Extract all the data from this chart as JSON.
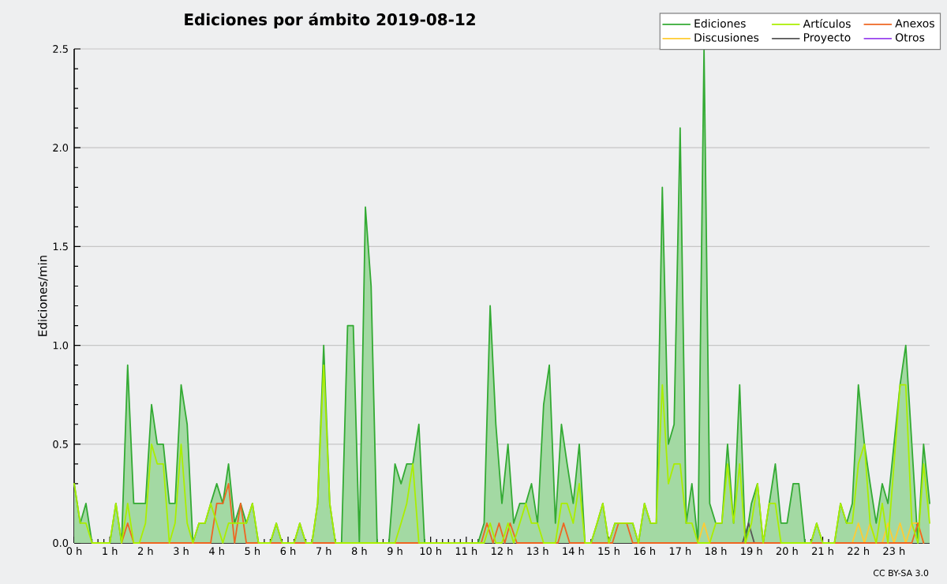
{
  "chart_data": {
    "type": "line",
    "title": "Ediciones por ámbito  2019-08-12",
    "ylabel": "Ediciones/min",
    "annotations": [
      "CC BY-SA 3.0"
    ],
    "xlim": [
      0,
      24
    ],
    "ylim": [
      0,
      2.5
    ],
    "xticks": [
      {
        "value": 0,
        "label": "0 h"
      },
      {
        "value": 1,
        "label": "1 h"
      },
      {
        "value": 2,
        "label": "2 h"
      },
      {
        "value": 3,
        "label": "3 h"
      },
      {
        "value": 4,
        "label": "4 h"
      },
      {
        "value": 5,
        "label": "5 h"
      },
      {
        "value": 6,
        "label": "6 h"
      },
      {
        "value": 7,
        "label": "7 h"
      },
      {
        "value": 8,
        "label": "8 h"
      },
      {
        "value": 9,
        "label": "9 h"
      },
      {
        "value": 10,
        "label": "10 h"
      },
      {
        "value": 11,
        "label": "11 h"
      },
      {
        "value": 12,
        "label": "12 h"
      },
      {
        "value": 13,
        "label": "13 h"
      },
      {
        "value": 14,
        "label": "14 h"
      },
      {
        "value": 15,
        "label": "15 h"
      },
      {
        "value": 16,
        "label": "16 h"
      },
      {
        "value": 17,
        "label": "17 h"
      },
      {
        "value": 18,
        "label": "18 h"
      },
      {
        "value": 19,
        "label": "19 h"
      },
      {
        "value": 20,
        "label": "20 h"
      },
      {
        "value": 21,
        "label": "21 h"
      },
      {
        "value": 22,
        "label": "22 h"
      },
      {
        "value": 23,
        "label": "23 h"
      }
    ],
    "yticks": [
      {
        "value": 0,
        "label": "0.0"
      },
      0.5,
      {
        "value": 1,
        "label": "1.0"
      },
      1.5,
      {
        "value": 2,
        "label": "2.0"
      },
      2.5
    ],
    "grid": "y",
    "legend": "top right",
    "marker": "none",
    "line_style": "solid",
    "series": [
      {
        "name": "Ediciones",
        "type": "area",
        "color": "#33aa33",
        "x": [
          0,
          0.17,
          0.33,
          0.5,
          0.67,
          0.83,
          1,
          1.17,
          1.33,
          1.5,
          1.67,
          1.83,
          2,
          2.17,
          2.33,
          2.5,
          2.67,
          2.83,
          3,
          3.17,
          3.33,
          3.5,
          3.67,
          3.83,
          4,
          4.17,
          4.33,
          4.5,
          4.67,
          4.83,
          5,
          5.17,
          5.33,
          5.5,
          5.67,
          5.83,
          6,
          6.17,
          6.33,
          6.5,
          6.67,
          6.83,
          7,
          7.17,
          7.33,
          7.5,
          7.67,
          7.83,
          8,
          8.17,
          8.33,
          8.5,
          8.67,
          8.83,
          9,
          9.17,
          9.33,
          9.5,
          9.67,
          9.83,
          10,
          10.17,
          10.33,
          10.5,
          10.67,
          10.83,
          11,
          11.17,
          11.33,
          11.5,
          11.67,
          11.83,
          12,
          12.17,
          12.33,
          12.5,
          12.67,
          12.83,
          13,
          13.17,
          13.33,
          13.5,
          13.67,
          13.83,
          14,
          14.17,
          14.33,
          14.5,
          14.67,
          14.83,
          15,
          15.17,
          15.33,
          15.5,
          15.67,
          15.83,
          16,
          16.17,
          16.33,
          16.5,
          16.67,
          16.83,
          17,
          17.17,
          17.33,
          17.5,
          17.67,
          17.83,
          18,
          18.17,
          18.33,
          18.5,
          18.67,
          18.83,
          19,
          19.17,
          19.33,
          19.5,
          19.67,
          19.83,
          20,
          20.17,
          20.33,
          20.5,
          20.67,
          20.83,
          21,
          21.17,
          21.33,
          21.5,
          21.67,
          21.83,
          22,
          22.17,
          22.33,
          22.5,
          22.67,
          22.83,
          23,
          23.17,
          23.33,
          23.5,
          23.67,
          23.83,
          24
        ],
        "values": [
          0.3,
          0.1,
          0.2,
          0,
          0,
          0,
          0,
          0.2,
          0,
          0.9,
          0.2,
          0.2,
          0.2,
          0.7,
          0.5,
          0.5,
          0.2,
          0.2,
          0.8,
          0.6,
          0,
          0.1,
          0.1,
          0.2,
          0.3,
          0.2,
          0.4,
          0.1,
          0.2,
          0.1,
          0.2,
          0,
          0,
          0,
          0.1,
          0,
          0,
          0,
          0.1,
          0,
          0,
          0.2,
          1.0,
          0.2,
          0,
          0,
          1.1,
          1.1,
          0,
          1.7,
          1.3,
          0,
          0,
          0,
          0.4,
          0.3,
          0.4,
          0.4,
          0.6,
          0,
          0,
          0,
          0,
          0,
          0,
          0,
          0,
          0,
          0,
          0.1,
          1.2,
          0.6,
          0.2,
          0.5,
          0.1,
          0.2,
          0.2,
          0.3,
          0.1,
          0.7,
          0.9,
          0.1,
          0.6,
          0.4,
          0.2,
          0.5,
          0,
          0,
          0.1,
          0.2,
          0,
          0.1,
          0.1,
          0.1,
          0.1,
          0,
          0.2,
          0.1,
          0.1,
          1.8,
          0.5,
          0.6,
          2.1,
          0.1,
          0.3,
          0,
          2.5,
          0.2,
          0.1,
          0.1,
          0.5,
          0.1,
          0.8,
          0,
          0.2,
          0.3,
          0,
          0.2,
          0.4,
          0.1,
          0.1,
          0.3,
          0.3,
          0,
          0,
          0.1,
          0,
          0,
          0,
          0.2,
          0.1,
          0.2,
          0.8,
          0.5,
          0.3,
          0.1,
          0.3,
          0.2,
          0.5,
          0.8,
          1.0,
          0.5,
          0,
          0.5,
          0.2
        ]
      },
      {
        "name": "Artículos",
        "color": "#aaee00",
        "x": [
          0,
          0.17,
          0.33,
          0.5,
          0.67,
          0.83,
          1,
          1.17,
          1.33,
          1.5,
          1.67,
          1.83,
          2,
          2.17,
          2.33,
          2.5,
          2.67,
          2.83,
          3,
          3.17,
          3.33,
          3.5,
          3.67,
          3.83,
          4,
          4.17,
          4.33,
          4.5,
          4.67,
          4.83,
          5,
          5.17,
          5.33,
          5.5,
          5.67,
          5.83,
          6,
          6.17,
          6.33,
          6.5,
          6.67,
          6.83,
          7,
          7.17,
          7.33,
          7.5,
          7.67,
          7.83,
          8,
          8.17,
          8.33,
          8.5,
          8.67,
          8.83,
          9,
          9.17,
          9.33,
          9.5,
          9.67,
          9.83,
          10,
          10.17,
          10.33,
          10.5,
          10.67,
          10.83,
          11,
          11.17,
          11.33,
          11.5,
          11.67,
          11.83,
          12,
          12.17,
          12.33,
          12.5,
          12.67,
          12.83,
          13,
          13.17,
          13.33,
          13.5,
          13.67,
          13.83,
          14,
          14.17,
          14.33,
          14.5,
          14.67,
          14.83,
          15,
          15.17,
          15.33,
          15.5,
          15.67,
          15.83,
          16,
          16.17,
          16.33,
          16.5,
          16.67,
          16.83,
          17,
          17.17,
          17.33,
          17.5,
          17.67,
          17.83,
          18,
          18.17,
          18.33,
          18.5,
          18.67,
          18.83,
          19,
          19.17,
          19.33,
          19.5,
          19.67,
          19.83,
          20,
          20.17,
          20.33,
          20.5,
          20.67,
          20.83,
          21,
          21.17,
          21.33,
          21.5,
          21.67,
          21.83,
          22,
          22.17,
          22.33,
          22.5,
          22.67,
          22.83,
          23,
          23.17,
          23.33,
          23.5,
          23.67,
          23.83,
          24
        ],
        "values": [
          0.3,
          0.1,
          0.1,
          0,
          0,
          0,
          0,
          0.2,
          0,
          0.2,
          0,
          0,
          0.1,
          0.5,
          0.4,
          0.4,
          0,
          0.1,
          0.5,
          0.1,
          0,
          0.1,
          0.1,
          0.2,
          0.1,
          0,
          0.1,
          0.1,
          0.1,
          0.1,
          0.2,
          0,
          0,
          0,
          0.1,
          0,
          0,
          0,
          0.1,
          0,
          0,
          0.2,
          0.9,
          0.2,
          0,
          0,
          0,
          0,
          0,
          0,
          0,
          0,
          0,
          0,
          0,
          0.1,
          0.2,
          0.4,
          0,
          0,
          0,
          0,
          0,
          0,
          0,
          0,
          0,
          0,
          0,
          0,
          0.1,
          0,
          0,
          0.1,
          0,
          0.1,
          0.2,
          0.1,
          0.1,
          0,
          0,
          0,
          0.2,
          0.2,
          0.1,
          0.3,
          0,
          0,
          0.1,
          0.2,
          0,
          0.1,
          0.1,
          0.1,
          0.1,
          0,
          0.2,
          0.1,
          0.1,
          0.8,
          0.3,
          0.4,
          0.4,
          0.1,
          0.1,
          0,
          0,
          0,
          0.1,
          0.1,
          0.4,
          0.1,
          0.4,
          0,
          0.1,
          0.3,
          0,
          0.2,
          0.2,
          0,
          0,
          0,
          0,
          0,
          0,
          0.1,
          0,
          0,
          0,
          0.2,
          0.1,
          0.1,
          0.4,
          0.5,
          0.1,
          0,
          0.2,
          0,
          0.4,
          0.8,
          0.8,
          0.1,
          0,
          0.4,
          0.1
        ]
      },
      {
        "name": "Anexos",
        "color": "#ee6622",
        "x": [
          1.33,
          1.5,
          1.67,
          3.83,
          4,
          4.17,
          4.33,
          4.5,
          4.67,
          4.83,
          11.42,
          11.58,
          11.75,
          11.92,
          12.08,
          12.23,
          12.42,
          13.57,
          13.73,
          13.9,
          15.1,
          15.27,
          15.5,
          15.67,
          23.5,
          23.67,
          23.83
        ],
        "values": [
          0,
          0.1,
          0,
          0,
          0.2,
          0.2,
          0.3,
          0,
          0.2,
          0,
          0,
          0.1,
          0,
          0.1,
          0,
          0.1,
          0,
          0,
          0.1,
          0,
          0,
          0.1,
          0.1,
          0,
          0,
          0.1,
          0
        ]
      },
      {
        "name": "Discusiones",
        "color": "#ffcc33",
        "x": [
          17.5,
          17.67,
          17.83,
          21.83,
          22,
          22.17,
          22.33,
          22.5,
          22.67,
          22.83,
          23,
          23.17,
          23.33,
          23.5,
          23.67,
          23.83
        ],
        "values": [
          0,
          0.1,
          0,
          0,
          0.1,
          0,
          0.1,
          0,
          0,
          0.1,
          0,
          0.1,
          0,
          0.1,
          0.1,
          0
        ]
      },
      {
        "name": "Proyecto",
        "color": "#555555",
        "x": [
          18.75,
          18.92,
          19.08
        ],
        "values": [
          0,
          0.1,
          0
        ]
      },
      {
        "name": "Otros",
        "color": "#9944ee",
        "values": [
          null
        ]
      }
    ]
  }
}
